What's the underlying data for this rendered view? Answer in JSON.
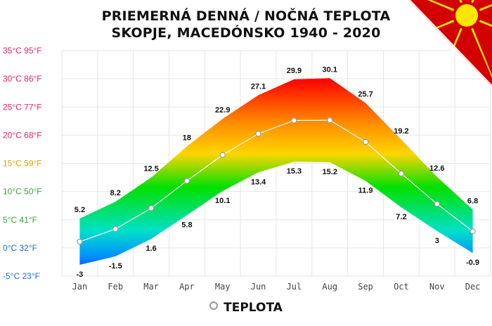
{
  "chart_data": {
    "type": "area",
    "title": "PRIEMERNÁ DENNÁ / NOČNÁ TEPLOTA",
    "subtitle": "SKOPJE, MACEDÓNSKO 1940 - 2020",
    "categories": [
      "Jan",
      "Feb",
      "Mar",
      "Apr",
      "May",
      "Jun",
      "Jul",
      "Aug",
      "Sep",
      "Oct",
      "Nov",
      "Dec"
    ],
    "series": [
      {
        "name": "",
        "kind": "high",
        "values": [
          5.2,
          8.2,
          12.5,
          18,
          22.9,
          27.1,
          29.9,
          30.1,
          25.7,
          19.2,
          12.6,
          6.8
        ]
      },
      {
        "name": "",
        "kind": "low",
        "values": [
          -3,
          -1.5,
          1.6,
          5.8,
          10.1,
          13.4,
          15.3,
          15.2,
          11.9,
          7.2,
          3,
          -0.9
        ]
      },
      {
        "name": "TEPLOTA",
        "kind": "mean",
        "values": [
          1.1,
          3.35,
          7.05,
          11.9,
          16.5,
          20.25,
          22.6,
          22.65,
          18.8,
          13.2,
          7.8,
          2.95
        ]
      }
    ],
    "high_labels": [
      "5.2",
      "8.2",
      "12.5",
      "18",
      "22.9",
      "27.1",
      "29.9",
      "30.1",
      "25.7",
      "19.2",
      "12.6",
      "6.8"
    ],
    "low_labels": [
      "-3",
      "-1.5",
      "1.6",
      "5.8",
      "10.1",
      "13.4",
      "15.3",
      "15.2",
      "11.9",
      "7.2",
      "3",
      "-0.9"
    ],
    "yticks": [
      {
        "value": 35,
        "label": "35°C 95°F",
        "color": "#ee1c6b"
      },
      {
        "value": 30,
        "label": "30°C 86°F",
        "color": "#ee1c6b"
      },
      {
        "value": 25,
        "label": "25°C 77°F",
        "color": "#ee1c6b"
      },
      {
        "value": 20,
        "label": "20°C 68°F",
        "color": "#ee1c6b"
      },
      {
        "value": 15,
        "label": "15°C 59°F",
        "color": "#d9a800"
      },
      {
        "value": 10,
        "label": "10°C 50°F",
        "color": "#3fa63f"
      },
      {
        "value": 5,
        "label": "5°C 41°F",
        "color": "#3fa63f"
      },
      {
        "value": 0,
        "label": "0°C 32°F",
        "color": "#1c6bee"
      },
      {
        "value": -5,
        "label": "-5°C 23°F",
        "color": "#1c6bee"
      }
    ],
    "ylim": [
      -5,
      35
    ],
    "grid": true,
    "legend": "bottom-center",
    "legend_label": "TEPLOTA"
  },
  "colors": {
    "hot": "#ff0000",
    "warm": "#ffd500",
    "mild": "#00e000",
    "cool": "#00e0d0",
    "cold": "#0030ff",
    "mean_line": "#ffffff",
    "grid": "#e6e6e6",
    "flag_red": "#d20000",
    "flag_yellow": "#ffe600"
  },
  "flag_icon": "north-macedonia-flag"
}
